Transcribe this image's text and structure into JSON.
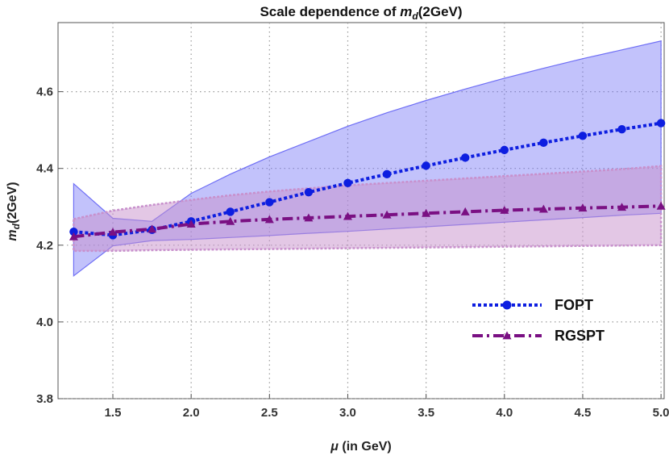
{
  "chart_data": {
    "type": "line",
    "title": "Scale dependence of m_d(2GeV)",
    "title_parts": {
      "prefix": "Scale dependence of ",
      "var": "m",
      "sub": "d",
      "suffix": "(2GeV)"
    },
    "xlabel": "μ (in GeV)",
    "xlabel_parts": {
      "var": "μ",
      "rest": " (in GeV)"
    },
    "ylabel": "m_d(2GeV)",
    "ylabel_parts": {
      "var": "m",
      "sub": "d",
      "rest": "(2GeV)"
    },
    "xlim": [
      1.15,
      5.02
    ],
    "ylim": [
      3.8,
      4.78
    ],
    "xticks": [
      1.5,
      2.0,
      2.5,
      3.0,
      3.5,
      4.0,
      4.5,
      5.0
    ],
    "xtick_labels": [
      "1.5",
      "2.0",
      "2.5",
      "3.0",
      "3.5",
      "4.0",
      "4.5",
      "5.0"
    ],
    "yticks": [
      3.8,
      4.0,
      4.2,
      4.4,
      4.6
    ],
    "ytick_labels": [
      "3.8",
      "4.0",
      "4.2",
      "4.4",
      "4.6"
    ],
    "grid": true,
    "legend_position": "bottom-right",
    "x": [
      1.25,
      1.5,
      1.75,
      2.0,
      2.25,
      2.5,
      2.75,
      3.0,
      3.25,
      3.5,
      3.75,
      4.0,
      4.25,
      4.5,
      4.75,
      5.0
    ],
    "series": [
      {
        "name": "FOPT",
        "color": "#0d1ee0",
        "marker": "circle",
        "line_style": "dotted",
        "values": [
          4.235,
          4.226,
          4.24,
          4.262,
          4.287,
          4.312,
          4.338,
          4.362,
          4.385,
          4.407,
          4.428,
          4.448,
          4.467,
          4.485,
          4.502,
          4.518
        ],
        "band_upper": [
          4.36,
          4.27,
          4.262,
          4.335,
          4.385,
          4.43,
          4.47,
          4.51,
          4.545,
          4.577,
          4.607,
          4.635,
          4.661,
          4.686,
          4.709,
          4.732
        ],
        "band_lower": [
          4.12,
          4.198,
          4.212,
          4.215,
          4.22,
          4.225,
          4.231,
          4.236,
          4.242,
          4.248,
          4.254,
          4.26,
          4.266,
          4.272,
          4.278,
          4.283
        ],
        "band_color": "#6e6ef5"
      },
      {
        "name": "RGSPT",
        "color": "#7a1083",
        "marker": "triangle",
        "line_style": "dash-dot",
        "values": [
          4.222,
          4.234,
          4.242,
          4.255,
          4.262,
          4.267,
          4.271,
          4.275,
          4.279,
          4.283,
          4.287,
          4.291,
          4.294,
          4.297,
          4.299,
          4.302
        ],
        "band_upper": [
          4.268,
          4.29,
          4.305,
          4.318,
          4.33,
          4.34,
          4.348,
          4.356,
          4.362,
          4.368,
          4.374,
          4.38,
          4.386,
          4.392,
          4.398,
          4.406
        ],
        "band_lower": [
          4.185,
          4.185,
          4.187,
          4.188,
          4.189,
          4.19,
          4.191,
          4.192,
          4.193,
          4.194,
          4.195,
          4.196,
          4.197,
          4.198,
          4.199,
          4.2
        ],
        "band_color": "#c890cc"
      }
    ]
  }
}
